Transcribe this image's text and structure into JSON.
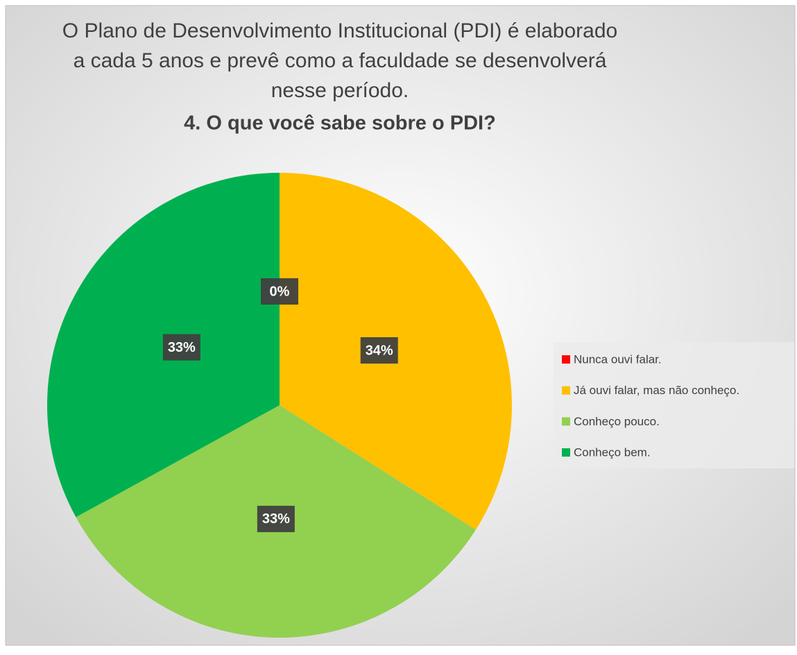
{
  "chart_data": {
    "type": "pie",
    "title": [
      "O Plano de Desenvolvimento Institucional (PDI) é elaborado",
      "a cada 5 anos e prevê como a faculdade se desenvolverá",
      "nesse período."
    ],
    "subtitle": "4. O que você sabe sobre o PDI?",
    "categories": [
      "Nunca ouvi falar.",
      "Já ouvi falar, mas não conheço.",
      "Conheço pouco.",
      "Conheço bem."
    ],
    "values": [
      0,
      34,
      33,
      33
    ],
    "value_labels": [
      "0%",
      "34%",
      "33%",
      "33%"
    ],
    "colors": [
      "#ff0000",
      "#ffc000",
      "#92d050",
      "#00b050"
    ],
    "legend": "right"
  }
}
